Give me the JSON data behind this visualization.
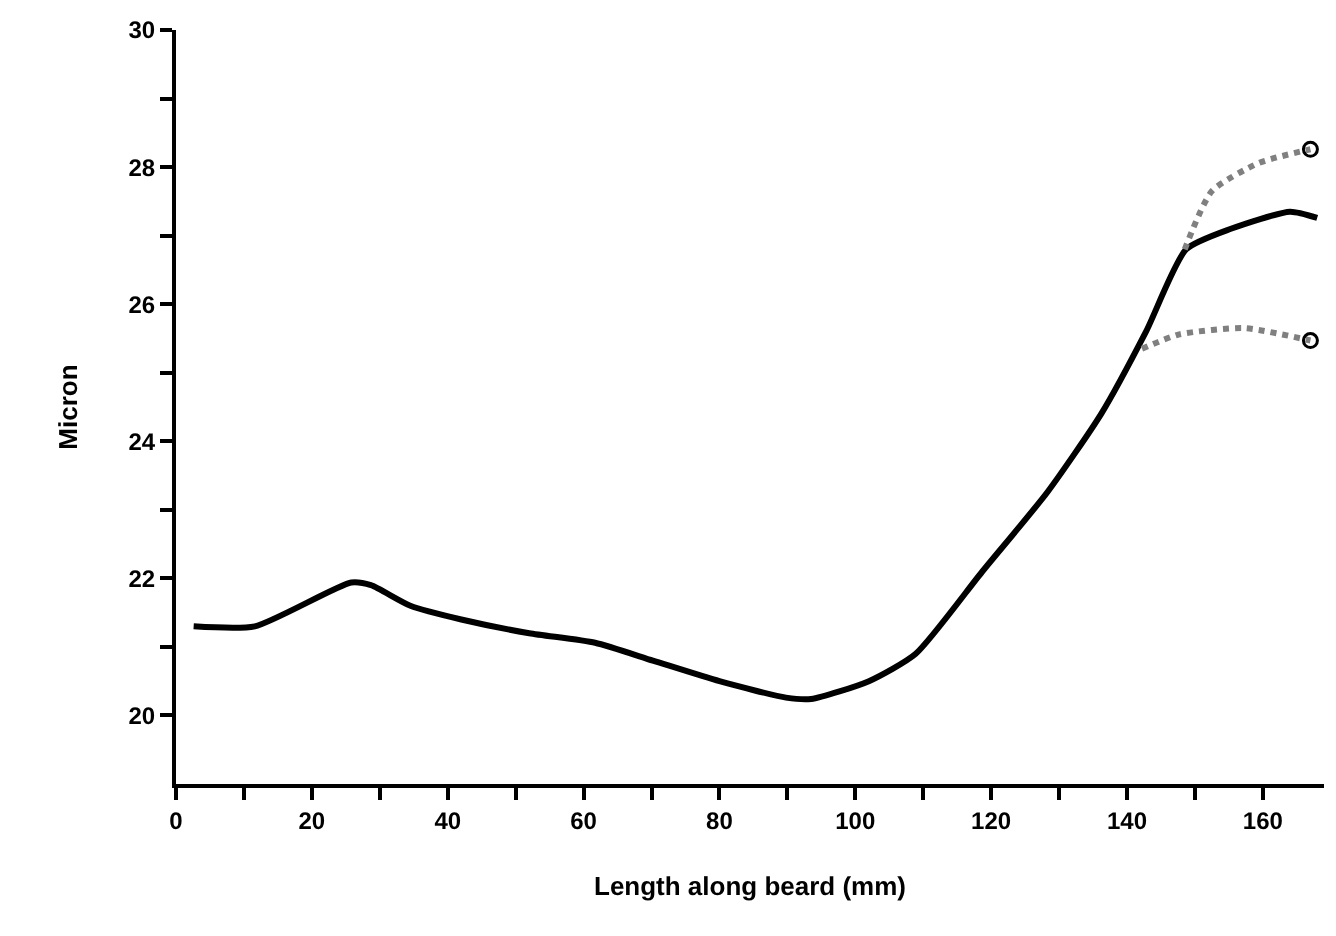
{
  "chart_data": {
    "type": "line",
    "xlabel": "Length along beard (mm)",
    "ylabel": "Micron",
    "xlim": [
      0,
      169
    ],
    "ylim": [
      19,
      30
    ],
    "xticks": [
      0,
      {
        "value": 10,
        "label": null
      },
      20,
      {
        "value": 30,
        "label": null
      },
      40,
      {
        "value": 50,
        "label": null
      },
      60,
      {
        "value": 70,
        "label": null
      },
      80,
      {
        "value": 90,
        "label": null
      },
      100,
      {
        "value": 110,
        "label": null
      },
      120,
      {
        "value": 130,
        "label": null
      },
      140,
      {
        "value": 150,
        "label": null
      },
      160
    ],
    "yticks": [
      20,
      {
        "value": 21,
        "label": null
      },
      22,
      {
        "value": 23,
        "label": null
      },
      24,
      {
        "value": 25,
        "label": null
      },
      26,
      {
        "value": 27,
        "label": null
      },
      28,
      {
        "value": 29,
        "label": null
      },
      30
    ],
    "grid": false,
    "series": [
      {
        "color": "#000000",
        "line_style": "solid",
        "x": [
          2.6,
          11.6,
          25.8,
          28.7,
          34.5,
          42,
          52,
          61.7,
          70.2,
          80,
          89.8,
          93.5,
          102,
          108.9,
          118.7,
          128.3,
          136.2,
          142.8,
          148.7,
          155.3,
          164,
          168
        ],
        "values": [
          21.3,
          21.3,
          21.94,
          21.9,
          21.6,
          21.4,
          21.2,
          21.06,
          20.8,
          20.5,
          20.26,
          20.24,
          20.5,
          20.9,
          22.1,
          23.26,
          24.4,
          25.6,
          26.8,
          27.1,
          27.35,
          27.26
        ]
      },
      {
        "color": "#808080",
        "line_style": "dotted",
        "x": [
          148.5,
          152.5,
          159.4,
          167
        ],
        "values": [
          26.8,
          27.65,
          28.06,
          28.26
        ]
      },
      {
        "color": "#808080",
        "line_style": "dotted",
        "x": [
          142.2,
          147.7,
          157.3,
          167
        ],
        "values": [
          25.35,
          25.56,
          25.65,
          25.47
        ]
      },
      {
        "type": "scatter",
        "color": "#000000",
        "marker": "circle",
        "x": [
          167,
          167
        ],
        "values": [
          28.26,
          25.47
        ]
      }
    ]
  }
}
